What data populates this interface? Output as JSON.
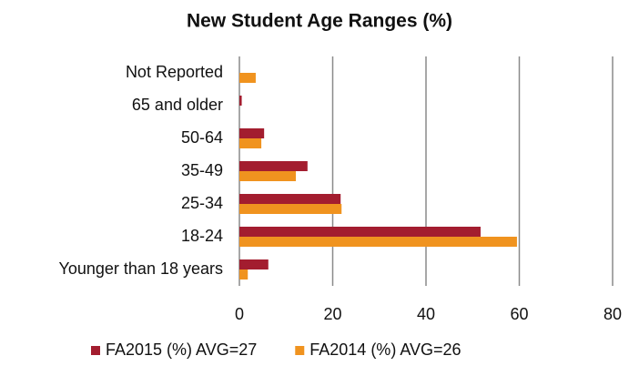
{
  "chart_data": {
    "type": "bar",
    "orientation": "horizontal",
    "title": "New Student Age Ranges (%)",
    "categories": [
      "Not Reported",
      "65 and older",
      "50-64",
      "35-49",
      "25-34",
      "18-24",
      "Younger than 18 years"
    ],
    "series": [
      {
        "name": "FA2015 (%) AVG=27",
        "color": "#a31d2f",
        "values": [
          0,
          0.5,
          5.3,
          14.6,
          21.7,
          51.7,
          6.2
        ]
      },
      {
        "name": "FA2014 (%) AVG=26",
        "color": "#f0931f",
        "values": [
          3.5,
          0,
          4.7,
          12.1,
          21.9,
          59.5,
          1.8
        ]
      }
    ],
    "xlim": [
      0,
      80
    ],
    "xticks": [
      0,
      20,
      40,
      60,
      80
    ],
    "grid": true,
    "legend": "bottom"
  }
}
